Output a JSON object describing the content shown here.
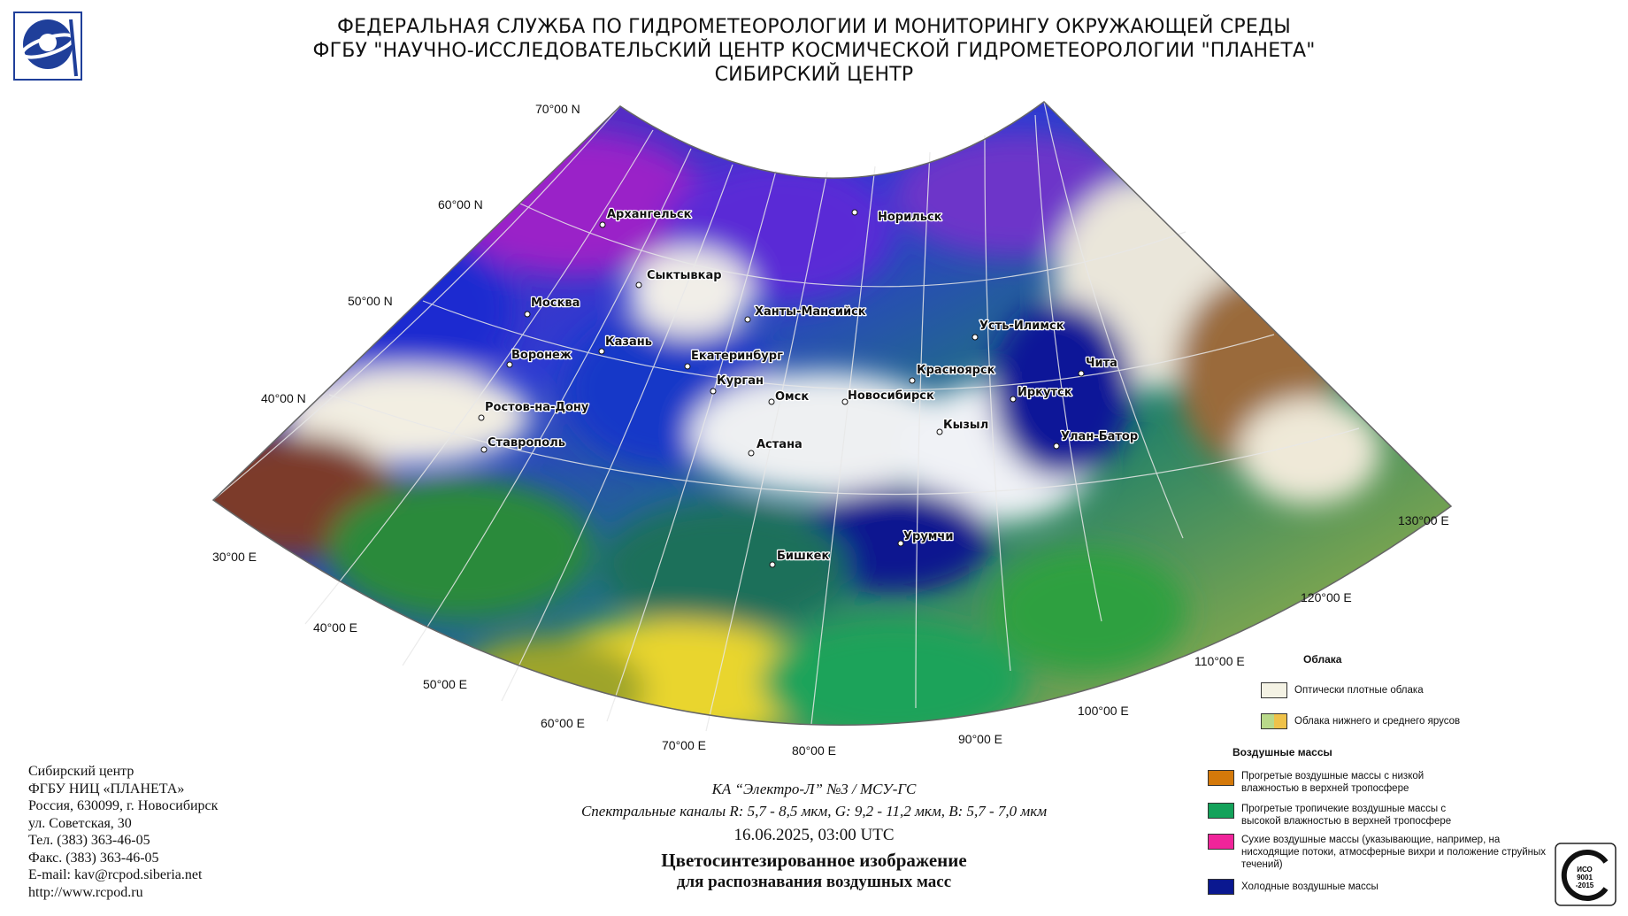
{
  "header": {
    "line1": "ФЕДЕРАЛЬНАЯ СЛУЖБА ПО ГИДРОМЕТЕОРОЛОГИИ И МОНИТОРИНГУ ОКРУЖАЮЩЕЙ СРЕДЫ",
    "line2": "ФГБУ \"НАУЧНО-ИССЛЕДОВАТЕЛЬСКИЙ ЦЕНТР КОСМИЧЕСКОЙ ГИДРОМЕТЕОРОЛОГИИ \"ПЛАНЕТА\"",
    "line3": "СИБИРСКИЙ ЦЕНТР"
  },
  "map": {
    "latitude_labels": [
      "70°00 N",
      "60°00 N",
      "50°00 N",
      "40°00 N"
    ],
    "longitude_labels": [
      "30°00 E",
      "40°00 E",
      "50°00 E",
      "60°00 E",
      "70°00 E",
      "80°00 E",
      "90°00 E",
      "100°00 E",
      "110°00 E",
      "120°00 E",
      "130°00 E"
    ],
    "cities": [
      {
        "name": "Архангельск"
      },
      {
        "name": "Норильск"
      },
      {
        "name": "Сыктывкар"
      },
      {
        "name": "Москва"
      },
      {
        "name": "Ханты-Мансийск"
      },
      {
        "name": "Усть-Илимск"
      },
      {
        "name": "Казань"
      },
      {
        "name": "Воронеж"
      },
      {
        "name": "Екатеринбург"
      },
      {
        "name": "Красноярск"
      },
      {
        "name": "Чита"
      },
      {
        "name": "Курган"
      },
      {
        "name": "Омск"
      },
      {
        "name": "Новосибирск"
      },
      {
        "name": "Иркутск"
      },
      {
        "name": "Ростов-на-Дону"
      },
      {
        "name": "Кызыл"
      },
      {
        "name": "Улан-Батор"
      },
      {
        "name": "Ставрополь"
      },
      {
        "name": "Астана"
      },
      {
        "name": "Урумчи"
      },
      {
        "name": "Бишкек"
      }
    ]
  },
  "caption": {
    "satellite": "КА “Электро-Л” №3 / МСУ-ГС",
    "channels": "Спектральные каналы R: 5,7 - 8,5 мкм, G: 9,2 - 11,2 мкм, B: 5,7 - 7,0 мкм",
    "datetime": "16.06.2025, 03:00 UTC",
    "title1": "Цветосинтезированное изображение",
    "title2": "для распознавания воздушных масс"
  },
  "address": [
    "Сибирский центр",
    "ФГБУ НИЦ «ПЛАНЕТА»",
    "Россия, 630099, г. Новосибирск",
    "ул. Советская, 30",
    "Тел. (383) 363-46-05",
    "Факс. (383) 363-46-05",
    "E-mail: kav@rcpod.siberia.net",
    "http://www.rcpod.ru"
  ],
  "legend": {
    "clouds_title": "Облака",
    "clouds": [
      {
        "text": "Оптически плотные облака",
        "colors": [
          "#f4f2e4"
        ]
      },
      {
        "text": "Облака нижнего и среднего ярусов",
        "colors": [
          "#b9d98a",
          "#efc24a"
        ]
      }
    ],
    "air_title": "Воздушные массы",
    "air": [
      {
        "text": "Прогретые воздушные массы с низкой влажностью в верхней тропосфере",
        "colors": [
          "#d4790a"
        ]
      },
      {
        "text": "Прогретые тропичекие воздушные массы с высокой влажностью в верхней тропосфере",
        "colors": [
          "#13a25a"
        ]
      },
      {
        "text": "Сухие воздушные массы (указывающие, например, на нисходящие потоки, атмосферные вихри и положение струйных течений)",
        "colors": [
          "#f0249a"
        ]
      },
      {
        "text": "Холодные воздушные массы",
        "colors": [
          "#0a1890"
        ]
      }
    ],
    "iso_text": "ИСО 9001 -2015"
  }
}
